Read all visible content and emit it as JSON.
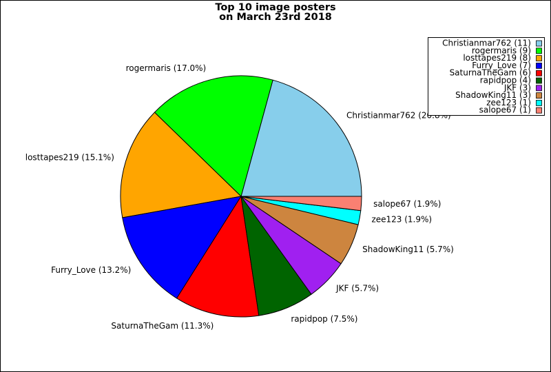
{
  "chart_data": {
    "type": "pie",
    "title": [
      "Top 10 image posters",
      "on March 23rd 2018"
    ],
    "categories": [
      "Christianmar762",
      "rogermaris",
      "losttapes219",
      "Furry_Love",
      "SaturnaTheGam",
      "rapidpop",
      "JKF",
      "ShadowKing11",
      "zee123",
      "salope67"
    ],
    "values": [
      11,
      9,
      8,
      7,
      6,
      4,
      3,
      3,
      1,
      1
    ],
    "value_labels": [
      "Christianmar762 (20.8%)",
      "rogermaris (17.0%)",
      "losttapes219 (15.1%)",
      "Furry_Love (13.2%)",
      "SaturnaTheGam (11.3%)",
      "rapidpop (7.5%)",
      "JKF (5.7%)",
      "ShadowKing11 (5.7%)",
      "zee123 (1.9%)",
      "salope67 (1.9%)"
    ],
    "legend_labels": [
      "Christianmar762 (11)",
      "rogermaris (9)",
      "losttapes219 (8)",
      "Furry_Love (7)",
      "SaturnaTheGam (6)",
      "rapidpop (4)",
      "JKF (3)",
      "ShadowKing11 (3)",
      "zee123 (1)",
      "salope67 (1)"
    ],
    "colors": [
      "#87ceeb",
      "#00ff00",
      "#ffa500",
      "#0000ff",
      "#ff0000",
      "#006400",
      "#a020f0",
      "#cd853f",
      "#00ffff",
      "#fa8072"
    ],
    "legend": "upper right"
  }
}
